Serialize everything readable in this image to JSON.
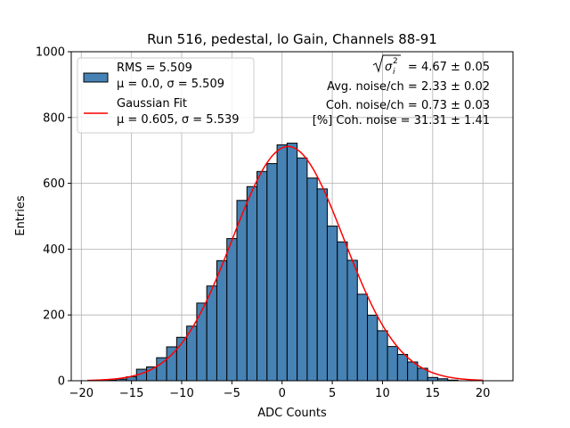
{
  "chart_data": {
    "type": "bar",
    "title": "Run 516, pedestal, lo Gain, Channels 88-91",
    "xlabel": "ADC Counts",
    "ylabel": "Entries",
    "xlim": [
      -21,
      23
    ],
    "ylim": [
      0,
      1000
    ],
    "xticks": [
      -20,
      -15,
      -10,
      -5,
      0,
      5,
      10,
      15,
      20
    ],
    "yticks": [
      0,
      200,
      400,
      600,
      800,
      1000
    ],
    "grid": true,
    "bin_width": 1,
    "bins": [
      {
        "x": -17,
        "y": 2
      },
      {
        "x": -16,
        "y": 5
      },
      {
        "x": -15,
        "y": 12
      },
      {
        "x": -14,
        "y": 35
      },
      {
        "x": -13,
        "y": 42
      },
      {
        "x": -12,
        "y": 70
      },
      {
        "x": -11,
        "y": 103
      },
      {
        "x": -10,
        "y": 132
      },
      {
        "x": -9,
        "y": 166
      },
      {
        "x": -8,
        "y": 236
      },
      {
        "x": -7,
        "y": 288
      },
      {
        "x": -6,
        "y": 365
      },
      {
        "x": -5,
        "y": 432
      },
      {
        "x": -4,
        "y": 548
      },
      {
        "x": -3,
        "y": 590
      },
      {
        "x": -2,
        "y": 636
      },
      {
        "x": -1,
        "y": 660
      },
      {
        "x": 0,
        "y": 717
      },
      {
        "x": 1,
        "y": 722
      },
      {
        "x": 2,
        "y": 677
      },
      {
        "x": 3,
        "y": 616
      },
      {
        "x": 4,
        "y": 583
      },
      {
        "x": 5,
        "y": 470
      },
      {
        "x": 6,
        "y": 422
      },
      {
        "x": 7,
        "y": 366
      },
      {
        "x": 8,
        "y": 263
      },
      {
        "x": 9,
        "y": 199
      },
      {
        "x": 10,
        "y": 152
      },
      {
        "x": 11,
        "y": 104
      },
      {
        "x": 12,
        "y": 80
      },
      {
        "x": 13,
        "y": 57
      },
      {
        "x": 14,
        "y": 38
      },
      {
        "x": 15,
        "y": 10
      },
      {
        "x": 16,
        "y": 6
      },
      {
        "x": 17,
        "y": 2
      }
    ],
    "fit": {
      "type": "gaussian",
      "mu": 0.605,
      "sigma": 5.539,
      "amplitude": 712,
      "x_range": [
        -19.4,
        20
      ]
    },
    "legend_position": "top-left",
    "legend": [
      {
        "kind": "patch",
        "line1": "RMS = 5.509",
        "line2": "μ = 0.0, σ = 5.509"
      },
      {
        "kind": "line",
        "line1": "Gaussian Fit",
        "line2": "μ = 0.605, σ = 5.539"
      }
    ],
    "annotations": {
      "sqrt_sigma_value": "= 4.67 ± 0.05",
      "avg_noise": "Avg. noise/ch = 2.33 ± 0.02",
      "coh_noise": "Coh. noise/ch = 0.73 ± 0.03",
      "pct_coh_noise": "[%] Coh. noise = 31.31 ± 1.41"
    },
    "colors": {
      "bar_fill": "#4682b4",
      "bar_edge": "#000000",
      "fit_line": "#ff0000",
      "grid": "#b0b0b0"
    }
  }
}
